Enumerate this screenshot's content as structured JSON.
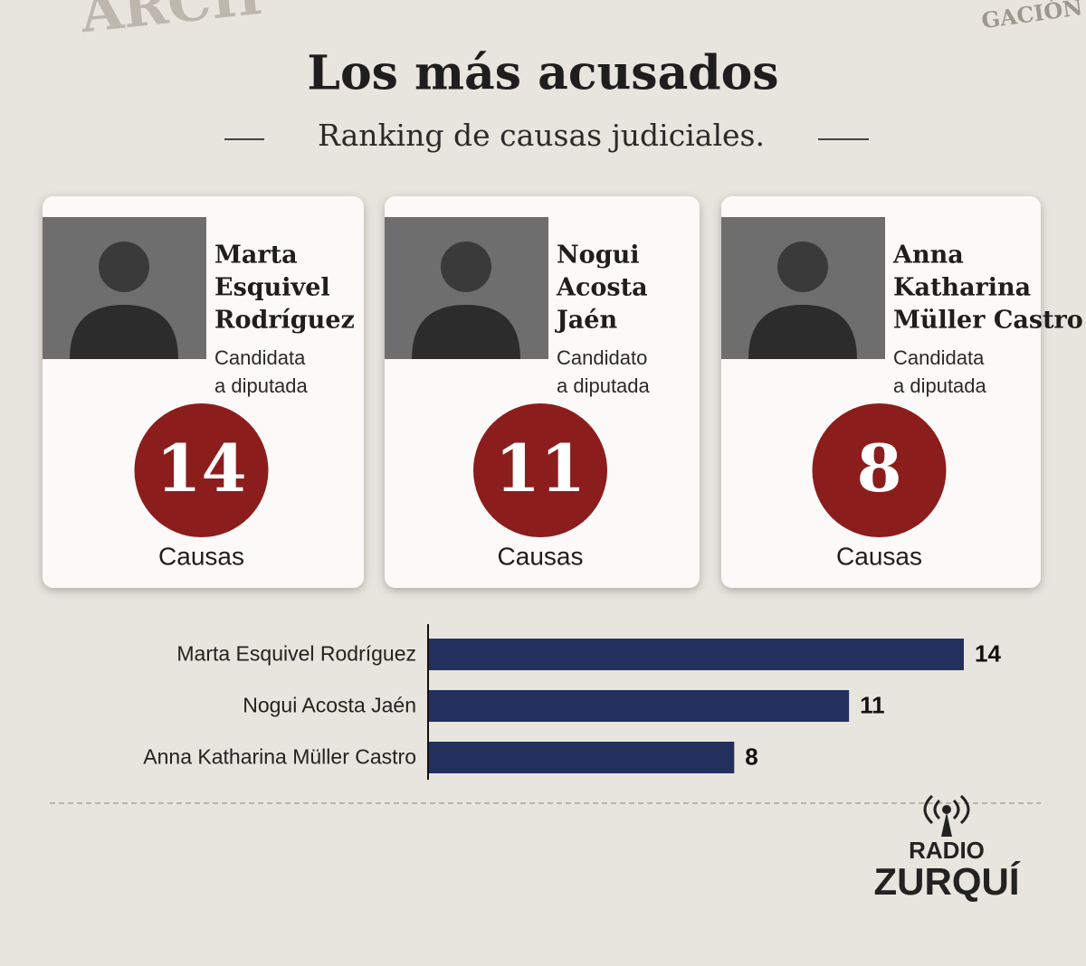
{
  "header": {
    "title": "Los más acusados",
    "subtitle": "Ranking de causas judiciales."
  },
  "stamps": [
    "ARCH",
    "GACIÓN"
  ],
  "cards": [
    {
      "name_lines": [
        "Marta",
        "Esquivel",
        "Rodríguez"
      ],
      "role_lines": [
        "Candidata",
        "a diputada"
      ],
      "count": "14",
      "unit": "Causas"
    },
    {
      "name_lines": [
        "Nogui",
        "Acosta",
        "Jaén"
      ],
      "role_lines": [
        "Candidato",
        "a diputada"
      ],
      "count": "11",
      "unit": "Causas"
    },
    {
      "name_lines": [
        "Anna",
        "Katharina",
        "Müller Castro"
      ],
      "role_lines": [
        "Candidata",
        "a diputada"
      ],
      "count": "8",
      "unit": "Causas"
    }
  ],
  "chart_data": {
    "type": "bar",
    "orientation": "horizontal",
    "categories": [
      "Marta Esquivel Rodríguez",
      "Nogui Acosta Jaén",
      "Anna Katharina Müller Castro"
    ],
    "values": [
      14,
      11,
      8
    ],
    "color": "#23305e"
  },
  "logo": {
    "line1": "RADIO",
    "line2": "ZURQUÍ"
  }
}
